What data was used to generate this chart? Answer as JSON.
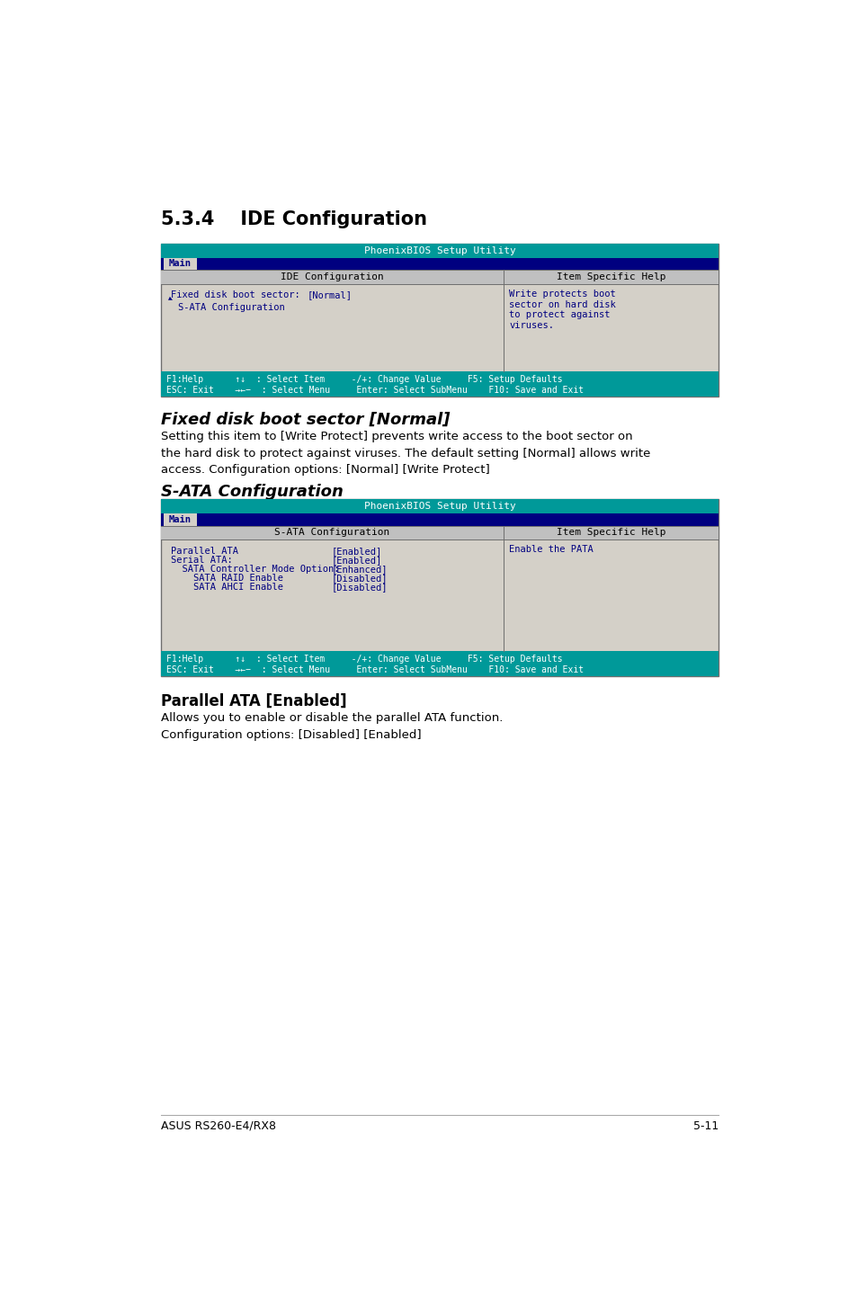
{
  "page_bg": "#ffffff",
  "title1": "5.3.4    IDE Configuration",
  "section2_title": "Fixed disk boot sector [Normal]",
  "section2_body": "Setting this item to [Write Protect] prevents write access to the boot sector on\nthe hard disk to protect against viruses. The default setting [Normal] allows write\naccess. Configuration options: [Normal] [Write Protect]",
  "section3_title": "S-ATA Configuration",
  "section4_title": "Parallel ATA [Enabled]",
  "section4_body": "Allows you to enable or disable the parallel ATA function.\nConfiguration options: [Disabled] [Enabled]",
  "footer_left": "ASUS RS260-E4/RX8",
  "footer_right": "5-11",
  "bios_header_text": "PhoenixBIOS Setup Utility",
  "bios_nav_text": "Main",
  "bios1_col1_header": "IDE Configuration",
  "bios1_col2_header": "Item Specific Help",
  "bios1_row1_label": "Fixed disk boot sector:",
  "bios1_row1_val": "[Normal]",
  "bios1_row2": "S-ATA Configuration",
  "bios1_help": "Write protects boot\nsector on hard disk\nto protect against\nviruses.",
  "bios1_footer1": "F1:Help      ↑↓  : Select Item     -/+: Change Value     F5: Setup Defaults",
  "bios1_footer2": "ESC: Exit    →←−  : Select Menu     Enter: Select SubMenu    F10: Save and Exit",
  "bios2_col1_header": "S-ATA Configuration",
  "bios2_col2_header": "Item Specific Help",
  "bios2_rows": [
    {
      "label": "Parallel ATA",
      "val": "[Enabled]",
      "indent": 0
    },
    {
      "label": "Serial ATA:",
      "val": "[Enabled]",
      "indent": 0
    },
    {
      "label": "  SATA Controller Mode Option:",
      "val": "[Enhanced]",
      "indent": 0
    },
    {
      "label": "    SATA RAID Enable",
      "val": "[Disabled]",
      "indent": 0
    },
    {
      "label": "    SATA AHCI Enable",
      "val": "[Disabled]",
      "indent": 0
    }
  ],
  "bios2_help": "Enable the PATA",
  "bios2_footer1": "F1:Help      ↑↓  : Select Item     -/+: Change Value     F5: Setup Defaults",
  "bios2_footer2": "ESC: Exit    →←−  : Select Menu     Enter: Select SubMenu    F10: Save and Exit",
  "teal_color": "#009999",
  "navy_color": "#000080",
  "light_gray": "#d4d0c8",
  "mid_gray": "#c0c0c0",
  "dark_border": "#6e6e6e",
  "text_blue": "#000080",
  "white": "#ffffff",
  "black": "#000000"
}
